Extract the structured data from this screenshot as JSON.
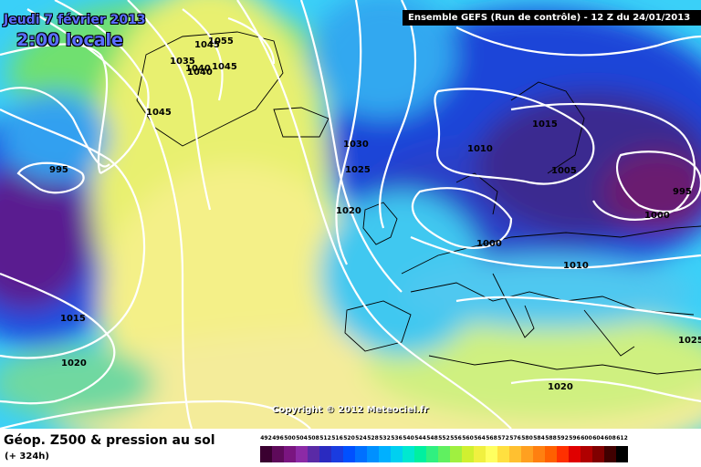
{
  "header": {
    "date": "Jeudi 7 février 2013",
    "time": "2:00 locale",
    "model_info": "Ensemble GEFS (Run de contrôle)  -  12 Z du 24/01/2013"
  },
  "copyright": "Copyright © 2012 Meteociel.fr",
  "footer": {
    "title": "Géop. Z500 & pression au sol",
    "subtitle": "(+ 324h)"
  },
  "legend": {
    "values": [
      "492",
      "496",
      "500",
      "504",
      "508",
      "512",
      "516",
      "520",
      "524",
      "528",
      "532",
      "536",
      "540",
      "544",
      "548",
      "552",
      "556",
      "560",
      "564",
      "568",
      "572",
      "576",
      "580",
      "584",
      "588",
      "592",
      "596",
      "600",
      "604",
      "608",
      "612"
    ],
    "colors": [
      "#3a0030",
      "#5e0a5a",
      "#7a1580",
      "#8c2aa6",
      "#5a2aa6",
      "#2a2ac0",
      "#1a3ce0",
      "#0050ff",
      "#0070ff",
      "#0090ff",
      "#00b0ff",
      "#00d0f0",
      "#00e8d0",
      "#00f0a0",
      "#30f080",
      "#60f060",
      "#a0f040",
      "#d0f030",
      "#f0f040",
      "#ffff60",
      "#ffe040",
      "#ffc030",
      "#ffa020",
      "#ff8010",
      "#ff6000",
      "#ff3000",
      "#e00000",
      "#b00000",
      "#800000",
      "#400000",
      "#000000"
    ]
  },
  "map": {
    "isobar_labels": [
      "1055",
      "1045",
      "1040",
      "1035",
      "1040",
      "1045",
      "1045",
      "1030",
      "1025",
      "1020",
      "995",
      "1015",
      "1020",
      "1015",
      "1010",
      "1005",
      "995",
      "1000",
      "1000",
      "1010",
      "1025",
      "1020"
    ],
    "field_colors": {
      "background": "#5fe0ff",
      "deep_purple": "#6a1a80",
      "indigo": "#2a2ab8",
      "blue": "#1a50e0",
      "cyan": "#30c8ff",
      "green": "#80e860",
      "yellow": "#f2f27a",
      "pale_yellow": "#f8f0a0",
      "sea_green": "#60d890"
    }
  }
}
